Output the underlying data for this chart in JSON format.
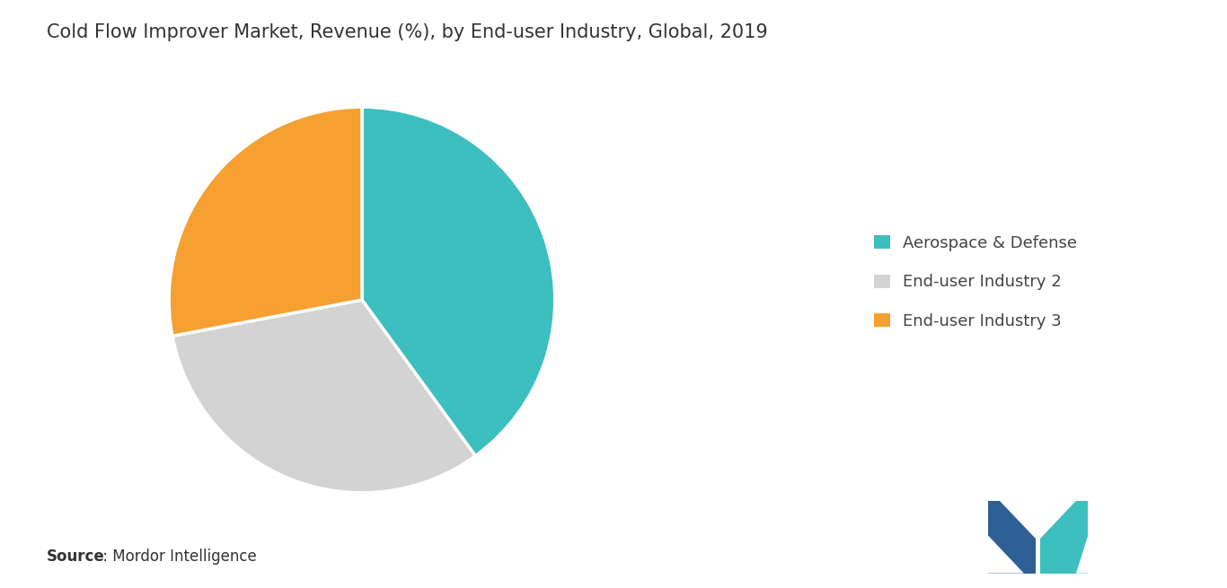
{
  "title": "Cold Flow Improver Market, Revenue (%), by End-user Industry, Global, 2019",
  "slices": [
    40,
    32,
    28
  ],
  "labels": [
    "Aerospace & Defense",
    "End-user Industry 2",
    "End-user Industry 3"
  ],
  "colors": [
    "#3dbfbf",
    "#d3d3d3",
    "#f5a030"
  ],
  "startangle": 90,
  "title_fontsize": 15,
  "source_bold": "Source",
  "source_normal": " : Mordor Intelligence",
  "background_color": "#ffffff",
  "legend_fontsize": 13,
  "source_fontsize": 12,
  "logo_color_left": "#2e6096",
  "logo_color_right": "#3dbfbf"
}
